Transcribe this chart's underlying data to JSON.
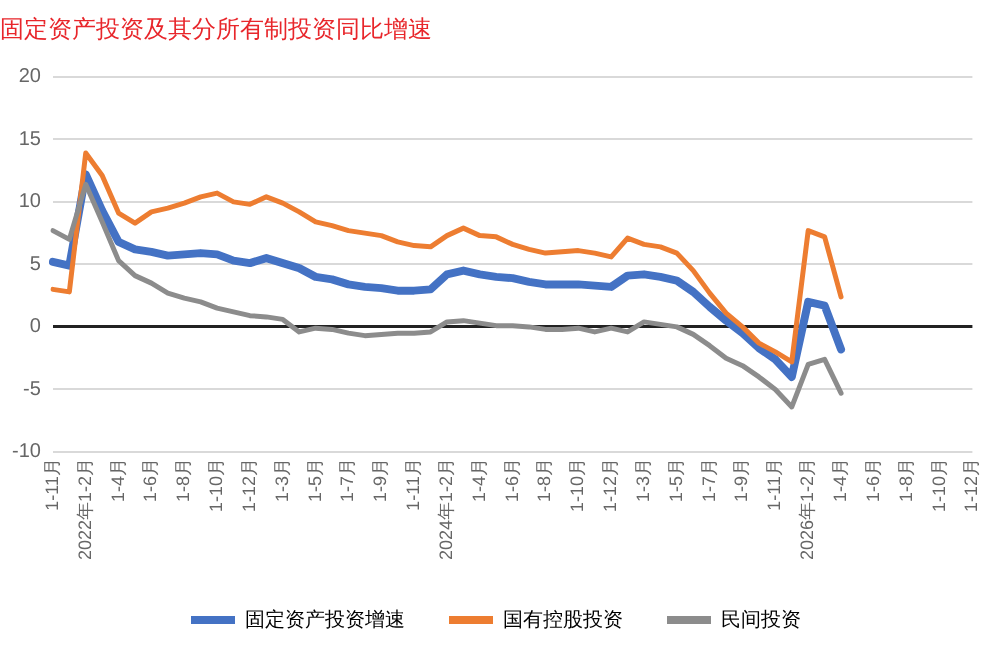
{
  "chart_data": {
    "type": "line",
    "title": "固定资产投资及其分所有制投资同比增速",
    "categories": [
      "1-11月",
      null,
      "2022年1-2月",
      null,
      "1-4月",
      null,
      "1-6月",
      null,
      "1-8月",
      null,
      "1-10月",
      null,
      "1-12月",
      null,
      "1-3月",
      null,
      "1-5月",
      null,
      "1-7月",
      null,
      "1-9月",
      null,
      "1-11月",
      null,
      "2024年1-2月",
      null,
      "1-4月",
      null,
      "1-6月",
      null,
      "1-8月",
      null,
      "1-10月",
      null,
      "1-12月",
      null,
      "1-3月",
      null,
      "1-5月",
      null,
      "1-7月",
      null,
      "1-9月",
      null,
      "1-11月",
      null,
      "2026年1-2月",
      null,
      "1-4月",
      null,
      "1-6月",
      null,
      "1-8月",
      null,
      "1-10月",
      null,
      "1-12月"
    ],
    "series": [
      {
        "name": "固定资产投资增速",
        "color": "#4472c4",
        "values": [
          5.2,
          4.9,
          12.2,
          9.3,
          6.8,
          6.2,
          6.0,
          5.7,
          5.8,
          5.9,
          5.8,
          5.3,
          5.1,
          5.5,
          5.1,
          4.7,
          4.0,
          3.8,
          3.4,
          3.2,
          3.1,
          2.9,
          2.9,
          3.0,
          4.2,
          4.5,
          4.2,
          4.0,
          3.9,
          3.6,
          3.4,
          3.4,
          3.4,
          3.3,
          3.2,
          4.1,
          4.2,
          4.0,
          3.7,
          2.8,
          1.6,
          0.5,
          -0.5,
          -1.7,
          -2.6,
          -4.0,
          2.0,
          1.7,
          -1.8,
          null,
          null,
          null,
          null,
          null,
          null,
          null,
          null
        ]
      },
      {
        "name": "国有控股投资",
        "color": "#ed7d31",
        "values": [
          3.0,
          2.8,
          13.9,
          12.1,
          9.1,
          8.3,
          9.2,
          9.5,
          9.9,
          10.4,
          10.7,
          10.0,
          9.8,
          10.4,
          9.9,
          9.2,
          8.4,
          8.1,
          7.7,
          7.5,
          7.3,
          6.8,
          6.5,
          6.4,
          7.3,
          7.9,
          7.3,
          7.2,
          6.6,
          6.2,
          5.9,
          6.0,
          6.1,
          5.9,
          5.6,
          7.1,
          6.6,
          6.4,
          5.9,
          4.5,
          2.7,
          1.1,
          0.0,
          -1.3,
          -2.0,
          -2.8,
          7.7,
          7.2,
          2.4,
          null,
          null,
          null,
          null,
          null,
          null,
          null,
          null
        ]
      },
      {
        "name": "民间投资",
        "color": "#8c8c8c",
        "values": [
          7.7,
          7.0,
          11.4,
          8.4,
          5.3,
          4.1,
          3.5,
          2.7,
          2.3,
          2.0,
          1.5,
          1.2,
          0.9,
          0.8,
          0.6,
          -0.4,
          -0.1,
          -0.2,
          -0.5,
          -0.7,
          -0.6,
          -0.5,
          -0.5,
          -0.4,
          0.4,
          0.5,
          0.3,
          0.1,
          0.1,
          0.0,
          -0.2,
          -0.2,
          -0.1,
          -0.4,
          -0.1,
          -0.4,
          0.4,
          0.2,
          0.0,
          -0.6,
          -1.5,
          -2.5,
          -3.1,
          -4.0,
          -5.0,
          -6.4,
          -3.0,
          -2.6,
          -5.3,
          null,
          null,
          null,
          null,
          null,
          null,
          null,
          null
        ]
      }
    ],
    "ylim": [
      -10,
      20
    ],
    "yticks": [
      -10,
      -5,
      0,
      5,
      10,
      15,
      20
    ],
    "grid": "y",
    "legend": "bottom",
    "marker": "none",
    "line_style": "solid"
  }
}
